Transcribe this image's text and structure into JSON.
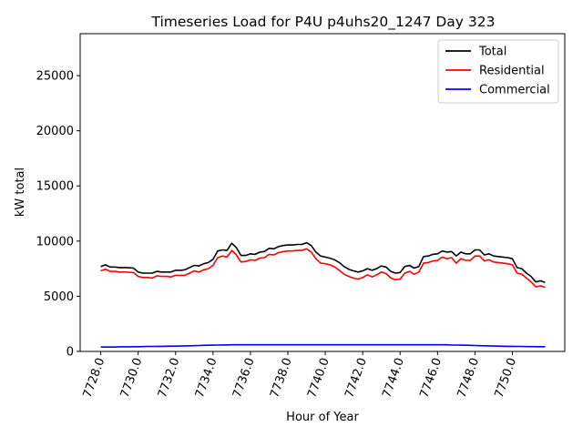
{
  "chart_data": {
    "type": "line",
    "title": "Timeseries Load for P4U p4uhs20_1247  Day 323",
    "xlabel": "Hour of Year",
    "ylabel": "kW total",
    "xlim": [
      7726.9,
      7752.8
    ],
    "ylim": [
      0,
      28800
    ],
    "xticks": [
      7728,
      7730,
      7732,
      7734,
      7736,
      7738,
      7740,
      7742,
      7744,
      7746,
      7748,
      7750
    ],
    "xtick_labels": [
      "7728.0",
      "7730.0",
      "7732.0",
      "7734.0",
      "7736.0",
      "7738.0",
      "7740.0",
      "7742.0",
      "7744.0",
      "7746.0",
      "7748.0",
      "7750.0"
    ],
    "yticks": [
      0,
      5000,
      10000,
      15000,
      20000,
      25000
    ],
    "ytick_labels": [
      "0",
      "5000",
      "10000",
      "15000",
      "20000",
      "25000"
    ],
    "legend_position": "top-right",
    "x": [
      7728.0,
      7728.25,
      7728.5,
      7728.75,
      7729.0,
      7729.25,
      7729.5,
      7729.75,
      7730.0,
      7730.25,
      7730.5,
      7730.75,
      7731.0,
      7731.25,
      7731.5,
      7731.75,
      7732.0,
      7732.25,
      7732.5,
      7732.75,
      7733.0,
      7733.25,
      7733.5,
      7733.75,
      7734.0,
      7734.25,
      7734.5,
      7734.75,
      7735.0,
      7735.25,
      7735.5,
      7735.75,
      7736.0,
      7736.25,
      7736.5,
      7736.75,
      7737.0,
      7737.25,
      7737.5,
      7737.75,
      7738.0,
      7738.25,
      7738.5,
      7738.75,
      7739.0,
      7739.25,
      7739.5,
      7739.75,
      7740.0,
      7740.25,
      7740.5,
      7740.75,
      7741.0,
      7741.25,
      7741.5,
      7741.75,
      7742.0,
      7742.25,
      7742.5,
      7742.75,
      7743.0,
      7743.25,
      7743.5,
      7743.75,
      7744.0,
      7744.25,
      7744.5,
      7744.75,
      7745.0,
      7745.25,
      7745.5,
      7745.75,
      7746.0,
      7746.25,
      7746.5,
      7746.75,
      7747.0,
      7747.25,
      7747.5,
      7747.75,
      7748.0,
      7748.25,
      7748.5,
      7748.75,
      7749.0,
      7749.25,
      7749.5,
      7749.75,
      7750.0,
      7750.25,
      7750.5,
      7750.75,
      7751.0,
      7751.25,
      7751.5,
      7751.75
    ],
    "series": [
      {
        "name": "Total",
        "color": "#000000",
        "values": [
          7700,
          7850,
          7650,
          7650,
          7600,
          7600,
          7580,
          7550,
          7200,
          7100,
          7100,
          7100,
          7250,
          7200,
          7200,
          7200,
          7350,
          7350,
          7400,
          7600,
          7800,
          7750,
          7950,
          8050,
          8350,
          9100,
          9200,
          9150,
          9800,
          9400,
          8700,
          8700,
          8850,
          8800,
          9000,
          9050,
          9350,
          9300,
          9500,
          9600,
          9650,
          9650,
          9700,
          9700,
          9850,
          9600,
          9000,
          8650,
          8550,
          8450,
          8300,
          8050,
          7700,
          7450,
          7300,
          7200,
          7300,
          7500,
          7350,
          7500,
          7750,
          7650,
          7250,
          7100,
          7150,
          7700,
          7800,
          7550,
          7700,
          8600,
          8650,
          8800,
          8850,
          9100,
          9000,
          9050,
          8650,
          9000,
          8850,
          8850,
          9200,
          9200,
          8750,
          8850,
          8650,
          8600,
          8550,
          8500,
          8400,
          7600,
          7500,
          7100,
          6800,
          6300,
          6400,
          6250
        ]
      },
      {
        "name": "Residential",
        "color": "#ff0000",
        "values": [
          7300,
          7450,
          7250,
          7250,
          7200,
          7200,
          7180,
          7150,
          6800,
          6700,
          6700,
          6650,
          6850,
          6800,
          6800,
          6750,
          6900,
          6900,
          6900,
          7100,
          7300,
          7200,
          7400,
          7500,
          7800,
          8500,
          8650,
          8550,
          9150,
          8750,
          8100,
          8150,
          8300,
          8250,
          8450,
          8500,
          8800,
          8750,
          8950,
          9050,
          9100,
          9100,
          9150,
          9150,
          9300,
          9000,
          8400,
          8000,
          7950,
          7850,
          7650,
          7350,
          7000,
          6800,
          6650,
          6550,
          6700,
          6950,
          6750,
          6950,
          7200,
          7050,
          6650,
          6500,
          6550,
          7100,
          7250,
          7000,
          7200,
          8000,
          8050,
          8200,
          8250,
          8550,
          8400,
          8500,
          8000,
          8400,
          8250,
          8250,
          8650,
          8650,
          8200,
          8300,
          8100,
          8050,
          8000,
          7950,
          7850,
          7100,
          7000,
          6650,
          6300,
          5850,
          5950,
          5800
        ]
      },
      {
        "name": "Commercial",
        "color": "#0000ff",
        "values": [
          400,
          400,
          400,
          400,
          420,
          420,
          420,
          430,
          430,
          440,
          450,
          450,
          460,
          460,
          470,
          480,
          480,
          490,
          500,
          510,
          520,
          540,
          550,
          560,
          570,
          580,
          590,
          590,
          600,
          600,
          600,
          600,
          600,
          600,
          600,
          600,
          600,
          600,
          600,
          600,
          600,
          600,
          600,
          600,
          600,
          600,
          600,
          600,
          600,
          600,
          600,
          600,
          600,
          600,
          600,
          600,
          600,
          600,
          600,
          600,
          600,
          600,
          600,
          600,
          600,
          600,
          600,
          600,
          600,
          600,
          600,
          600,
          600,
          600,
          600,
          580,
          580,
          570,
          560,
          550,
          540,
          520,
          510,
          500,
          490,
          480,
          470,
          460,
          460,
          450,
          450,
          440,
          440,
          430,
          430,
          430
        ]
      }
    ]
  }
}
